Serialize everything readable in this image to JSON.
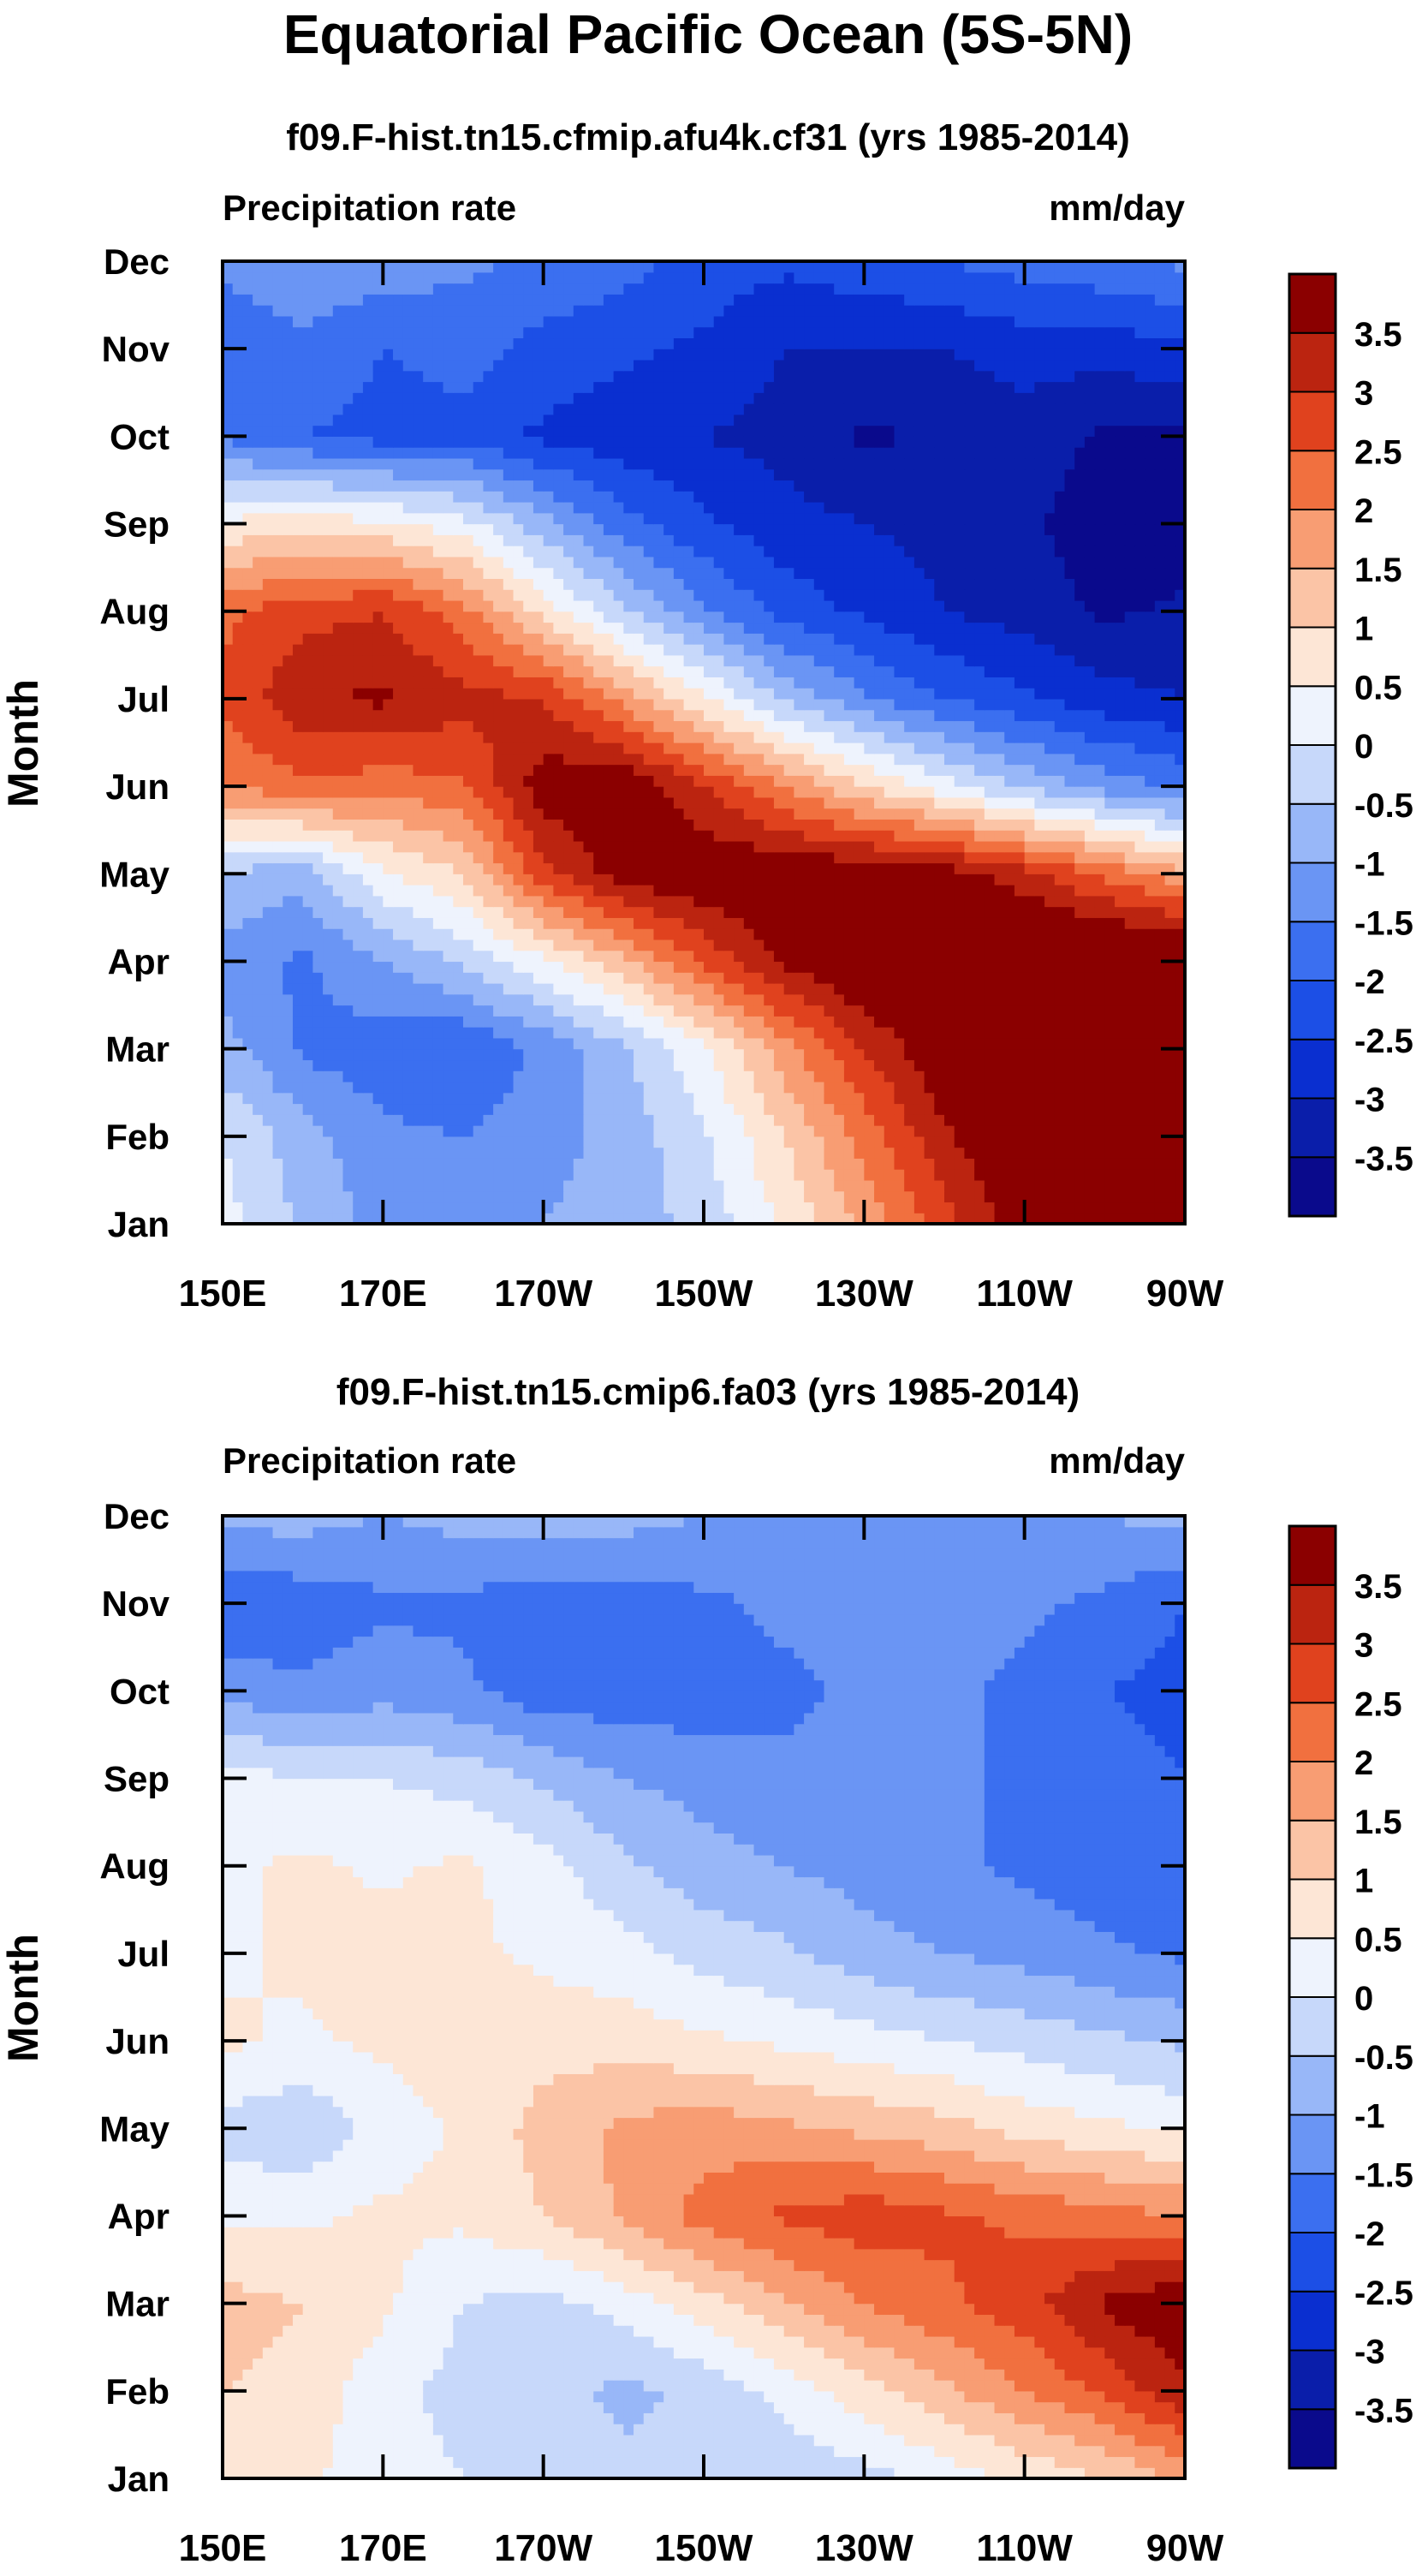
{
  "figure": {
    "title": "Equatorial Pacific Ocean (5S-5N)"
  },
  "palette": {
    "levels": [
      "-3.5",
      "-3",
      "-2.5",
      "-2",
      "-1.5",
      "-1",
      "-0.5",
      "0",
      "0.5",
      "1",
      "1.5",
      "2",
      "2.5",
      "3",
      "3.5"
    ],
    "colors": [
      "#0a0a8c",
      "#0a1eaa",
      "#0a2fd0",
      "#1c4fe6",
      "#3b6ff0",
      "#6a95f4",
      "#98b7f8",
      "#c7d8fa",
      "#eef3fd",
      "#fde6d6",
      "#fbc4a6",
      "#f89d73",
      "#f1703f",
      "#e0421e",
      "#bb2410",
      "#8b0000"
    ]
  },
  "chart_data": [
    {
      "type": "heatmap",
      "title": "f09.F-hist.tn15.cfmip.afu4k.cf31 (yrs 1985-2014)",
      "left_label": "Precipitation rate",
      "right_label": "mm/day",
      "xlabel": "",
      "ylabel": "Month",
      "xticks": [
        "150E",
        "170E",
        "170W",
        "150W",
        "130W",
        "110W",
        "90W"
      ],
      "yticks": [
        "Jan",
        "Feb",
        "Mar",
        "Apr",
        "May",
        "Jun",
        "Jul",
        "Aug",
        "Sep",
        "Oct",
        "Nov",
        "Dec"
      ],
      "xlim": [
        150,
        270
      ],
      "ylim": [
        1,
        12
      ],
      "units": "mm/day",
      "field": {
        "x": [
          150,
          160,
          170,
          180,
          190,
          200,
          210,
          220,
          230,
          240,
          250,
          260,
          270
        ],
        "y": [
          "Jan",
          "Feb",
          "Mar",
          "Apr",
          "May",
          "Jun",
          "Jul",
          "Aug",
          "Sep",
          "Oct",
          "Nov",
          "Dec"
        ],
        "values": [
          [
            0.2,
            -0.6,
            -1.2,
            -1.3,
            -1.0,
            -0.8,
            -0.3,
            0.6,
            1.6,
            2.8,
            3.8,
            4.2,
            4.5
          ],
          [
            0.0,
            -0.8,
            -1.4,
            -1.5,
            -1.2,
            -0.8,
            -0.1,
            1.0,
            2.2,
            3.4,
            4.2,
            4.5,
            4.5
          ],
          [
            -0.8,
            -1.6,
            -1.8,
            -2.0,
            -1.4,
            -0.6,
            0.4,
            1.8,
            3.0,
            4.0,
            4.5,
            4.5,
            4.5
          ],
          [
            -1.2,
            -1.6,
            -1.0,
            -0.4,
            0.4,
            1.4,
            2.6,
            3.6,
            4.2,
            4.5,
            4.5,
            4.5,
            4.5
          ],
          [
            -0.6,
            -0.8,
            0.4,
            1.0,
            2.8,
            3.8,
            4.0,
            4.0,
            4.0,
            3.8,
            3.2,
            2.4,
            1.6
          ],
          [
            2.0,
            2.4,
            2.2,
            2.4,
            3.8,
            4.0,
            3.0,
            2.0,
            1.0,
            0.2,
            -0.6,
            -1.2,
            -1.6
          ],
          [
            2.6,
            3.4,
            3.6,
            3.2,
            3.0,
            1.8,
            0.6,
            -0.6,
            -1.4,
            -2.0,
            -2.4,
            -2.8,
            -3.0
          ],
          [
            2.4,
            2.8,
            3.0,
            2.2,
            0.8,
            -0.4,
            -1.4,
            -2.2,
            -2.6,
            -3.0,
            -3.2,
            -3.6,
            -3.4
          ],
          [
            0.6,
            0.8,
            0.6,
            0.2,
            -0.8,
            -1.8,
            -2.4,
            -2.8,
            -3.0,
            -3.2,
            -3.4,
            -3.8,
            -3.8
          ],
          [
            -1.6,
            -2.0,
            -2.2,
            -2.2,
            -2.6,
            -2.8,
            -3.0,
            -3.2,
            -3.6,
            -3.4,
            -3.2,
            -3.6,
            -3.6
          ],
          [
            -1.8,
            -1.6,
            -2.0,
            -1.8,
            -2.2,
            -2.4,
            -2.6,
            -3.0,
            -3.0,
            -3.0,
            -2.8,
            -2.8,
            -2.6
          ],
          [
            -1.4,
            -1.2,
            -1.2,
            -1.4,
            -1.6,
            -1.8,
            -2.2,
            -2.4,
            -2.2,
            -2.0,
            -1.8,
            -1.6,
            -1.4
          ]
        ]
      }
    },
    {
      "type": "heatmap",
      "title": "f09.F-hist.tn15.cmip6.fa03 (yrs 1985-2014)",
      "left_label": "Precipitation rate",
      "right_label": "mm/day",
      "xlabel": "",
      "ylabel": "Month",
      "xticks": [
        "150E",
        "170E",
        "170W",
        "150W",
        "130W",
        "110W",
        "90W"
      ],
      "yticks": [
        "Jan",
        "Feb",
        "Mar",
        "Apr",
        "May",
        "Jun",
        "Jul",
        "Aug",
        "Sep",
        "Oct",
        "Nov",
        "Dec"
      ],
      "xlim": [
        150,
        270
      ],
      "ylim": [
        1,
        12
      ],
      "units": "mm/day",
      "field": {
        "x": [
          150,
          160,
          170,
          180,
          190,
          200,
          210,
          220,
          230,
          240,
          250,
          260,
          270
        ],
        "y": [
          "Jan",
          "Feb",
          "Mar",
          "Apr",
          "May",
          "Jun",
          "Jul",
          "Aug",
          "Sep",
          "Oct",
          "Nov",
          "Dec"
        ],
        "values": [
          [
            0.8,
            0.6,
            0.2,
            0.0,
            -0.2,
            -0.4,
            -0.4,
            -0.4,
            -0.2,
            0.2,
            0.6,
            1.0,
            1.6
          ],
          [
            1.0,
            0.8,
            0.2,
            -0.2,
            -0.4,
            -0.6,
            -0.4,
            0.2,
            0.8,
            1.4,
            2.0,
            2.6,
            3.4
          ],
          [
            1.2,
            1.0,
            0.6,
            0.0,
            -0.2,
            0.2,
            0.8,
            1.4,
            2.0,
            2.4,
            2.8,
            3.6,
            4.0
          ],
          [
            0.4,
            0.4,
            0.6,
            0.6,
            1.0,
            1.6,
            2.2,
            2.6,
            2.8,
            2.6,
            2.4,
            2.2,
            2.0
          ],
          [
            -0.2,
            -0.4,
            0.2,
            0.6,
            1.2,
            1.6,
            1.8,
            1.6,
            1.4,
            1.2,
            0.8,
            0.6,
            0.4
          ],
          [
            0.6,
            0.4,
            0.6,
            0.8,
            0.8,
            0.8,
            0.6,
            0.4,
            0.2,
            0.0,
            -0.2,
            -0.4,
            -0.6
          ],
          [
            0.4,
            0.6,
            0.8,
            0.6,
            0.4,
            0.2,
            -0.2,
            -0.4,
            -0.8,
            -1.0,
            -1.2,
            -1.4,
            -1.6
          ],
          [
            0.4,
            0.6,
            0.4,
            0.6,
            0.2,
            -0.4,
            -0.8,
            -1.0,
            -1.2,
            -1.4,
            -1.6,
            -1.8,
            -1.8
          ],
          [
            0.2,
            0.0,
            0.0,
            -0.2,
            -0.6,
            -1.0,
            -1.2,
            -1.4,
            -1.4,
            -1.4,
            -1.6,
            -1.8,
            -2.0
          ],
          [
            -1.2,
            -1.4,
            -1.2,
            -1.4,
            -1.8,
            -1.8,
            -1.8,
            -1.6,
            -1.4,
            -1.4,
            -1.6,
            -2.0,
            -2.2
          ],
          [
            -2.0,
            -1.8,
            -1.6,
            -1.6,
            -1.8,
            -1.8,
            -1.6,
            -1.4,
            -1.4,
            -1.4,
            -1.4,
            -1.6,
            -2.0
          ],
          [
            -0.8,
            -0.8,
            -1.0,
            -0.8,
            -0.8,
            -0.8,
            -1.0,
            -1.2,
            -1.2,
            -1.2,
            -1.2,
            -1.0,
            -0.8
          ]
        ]
      }
    }
  ]
}
